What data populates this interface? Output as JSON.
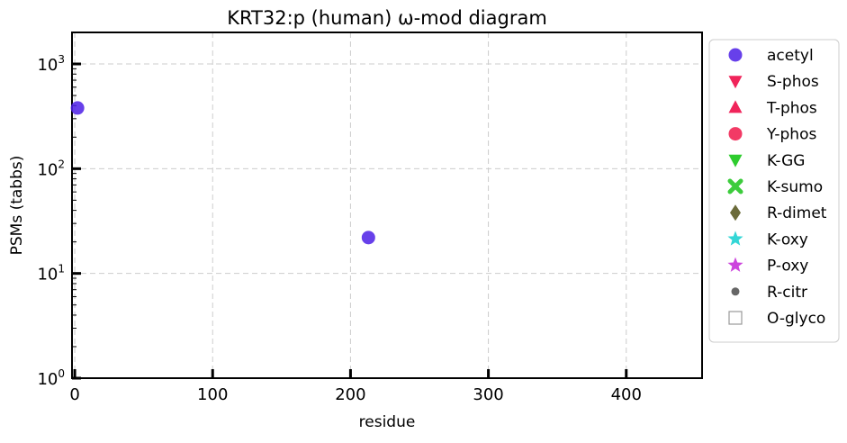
{
  "chart_data": {
    "type": "scatter",
    "title": "KRT32:p (human) ω-mod diagram",
    "xlabel": "residue",
    "ylabel": "PSMs (tabbs)",
    "xlim": [
      -2,
      455
    ],
    "ylim": [
      1,
      2000
    ],
    "yscale": "log",
    "x_ticks": [
      0,
      100,
      200,
      300,
      400
    ],
    "x_tick_labels": [
      "0",
      "100",
      "200",
      "300",
      "400"
    ],
    "y_ticks": [
      1,
      10,
      100,
      1000
    ],
    "y_tick_labels": [
      {
        "base": "10",
        "exp": "0"
      },
      {
        "base": "10",
        "exp": "1"
      },
      {
        "base": "10",
        "exp": "2"
      },
      {
        "base": "10",
        "exp": "3"
      }
    ],
    "grid": true,
    "legend_position": "right-outside",
    "series": [
      {
        "name": "acetyl",
        "marker": "circle",
        "color": "#4c1fe6",
        "points": [
          [
            2,
            380
          ],
          [
            213,
            22
          ]
        ]
      },
      {
        "name": "S-phos",
        "marker": "triangle-down",
        "color": "#f0245a",
        "points": []
      },
      {
        "name": "T-phos",
        "marker": "triangle-up",
        "color": "#f0245a",
        "points": []
      },
      {
        "name": "Y-phos",
        "marker": "circle",
        "color": "#f0184a",
        "points": []
      },
      {
        "name": "K-GG",
        "marker": "triangle-down",
        "color": "#2ecc2e",
        "points": []
      },
      {
        "name": "K-sumo",
        "marker": "x",
        "color": "#3ccc3c",
        "points": []
      },
      {
        "name": "R-dimet",
        "marker": "diamond",
        "color": "#6b6b3a",
        "points": []
      },
      {
        "name": "K-oxy",
        "marker": "star",
        "color": "#33d6d6",
        "points": []
      },
      {
        "name": "P-oxy",
        "marker": "star",
        "color": "#cc44dd",
        "points": []
      },
      {
        "name": "R-citr",
        "marker": "small-circle",
        "color": "#666666",
        "points": []
      },
      {
        "name": "O-glyco",
        "marker": "square-open",
        "color": "#999999",
        "points": []
      }
    ]
  }
}
